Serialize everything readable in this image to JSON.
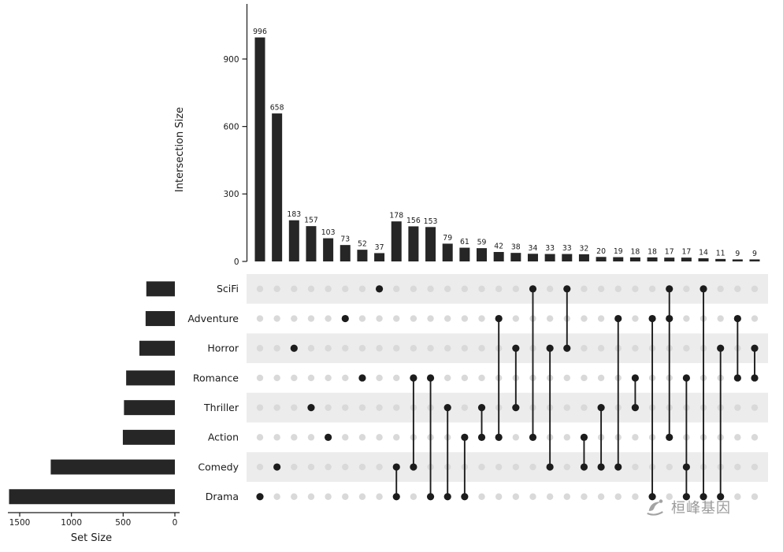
{
  "chart_data": {
    "type": "upset",
    "title": "",
    "grid": false,
    "legend": false,
    "intersection_axis": {
      "label": "Intersection Size",
      "ticks": [
        0,
        300,
        600,
        900
      ],
      "range": [
        0,
        1050
      ]
    },
    "set_axis": {
      "label": "Set Size",
      "ticks": [
        1500,
        1000,
        500,
        0
      ],
      "range": [
        0,
        1600
      ]
    },
    "sets": [
      {
        "name": "SciFi",
        "size": 276
      },
      {
        "name": "Adventure",
        "size": 283
      },
      {
        "name": "Horror",
        "size": 343
      },
      {
        "name": "Romance",
        "size": 471
      },
      {
        "name": "Thriller",
        "size": 492
      },
      {
        "name": "Action",
        "size": 503
      },
      {
        "name": "Comedy",
        "size": 1200
      },
      {
        "name": "Drama",
        "size": 1603
      }
    ],
    "intersections": [
      {
        "value": 996,
        "sets": [
          "Drama"
        ]
      },
      {
        "value": 658,
        "sets": [
          "Comedy"
        ]
      },
      {
        "value": 183,
        "sets": [
          "Horror"
        ]
      },
      {
        "value": 157,
        "sets": [
          "Thriller"
        ]
      },
      {
        "value": 103,
        "sets": [
          "Action"
        ]
      },
      {
        "value": 73,
        "sets": [
          "Adventure"
        ]
      },
      {
        "value": 52,
        "sets": [
          "Romance"
        ]
      },
      {
        "value": 37,
        "sets": [
          "SciFi"
        ]
      },
      {
        "value": 178,
        "sets": [
          "Comedy",
          "Drama"
        ]
      },
      {
        "value": 156,
        "sets": [
          "Romance",
          "Comedy"
        ]
      },
      {
        "value": 153,
        "sets": [
          "Romance",
          "Drama"
        ]
      },
      {
        "value": 79,
        "sets": [
          "Thriller",
          "Drama"
        ]
      },
      {
        "value": 61,
        "sets": [
          "Action",
          "Drama"
        ]
      },
      {
        "value": 59,
        "sets": [
          "Thriller",
          "Action"
        ]
      },
      {
        "value": 42,
        "sets": [
          "Adventure",
          "Action"
        ]
      },
      {
        "value": 38,
        "sets": [
          "Horror",
          "Thriller"
        ]
      },
      {
        "value": 34,
        "sets": [
          "SciFi",
          "Action"
        ]
      },
      {
        "value": 33,
        "sets": [
          "Horror",
          "Comedy"
        ]
      },
      {
        "value": 33,
        "sets": [
          "SciFi",
          "Horror"
        ]
      },
      {
        "value": 32,
        "sets": [
          "Action",
          "Comedy"
        ]
      },
      {
        "value": 20,
        "sets": [
          "Thriller",
          "Comedy"
        ]
      },
      {
        "value": 19,
        "sets": [
          "Adventure",
          "Comedy"
        ]
      },
      {
        "value": 18,
        "sets": [
          "Romance",
          "Thriller"
        ]
      },
      {
        "value": 18,
        "sets": [
          "Adventure",
          "Drama"
        ]
      },
      {
        "value": 17,
        "sets": [
          "SciFi",
          "Adventure",
          "Action"
        ]
      },
      {
        "value": 17,
        "sets": [
          "Romance",
          "Comedy",
          "Drama"
        ]
      },
      {
        "value": 14,
        "sets": [
          "SciFi",
          "Drama"
        ]
      },
      {
        "value": 11,
        "sets": [
          "Horror",
          "Drama"
        ]
      },
      {
        "value": 9,
        "sets": [
          "Adventure",
          "Romance"
        ]
      },
      {
        "value": 9,
        "sets": [
          "Horror",
          "Romance"
        ]
      }
    ],
    "colors": {
      "bar": "#262626",
      "dot_active": "#1c1c1c",
      "dot_inactive": "#d9d9d9",
      "stripe": "#ececec",
      "axis": "#1a1a1a",
      "text": "#1a1a1a"
    }
  },
  "watermark": {
    "text": "桓峰基因",
    "color": "#9a9a9a"
  }
}
